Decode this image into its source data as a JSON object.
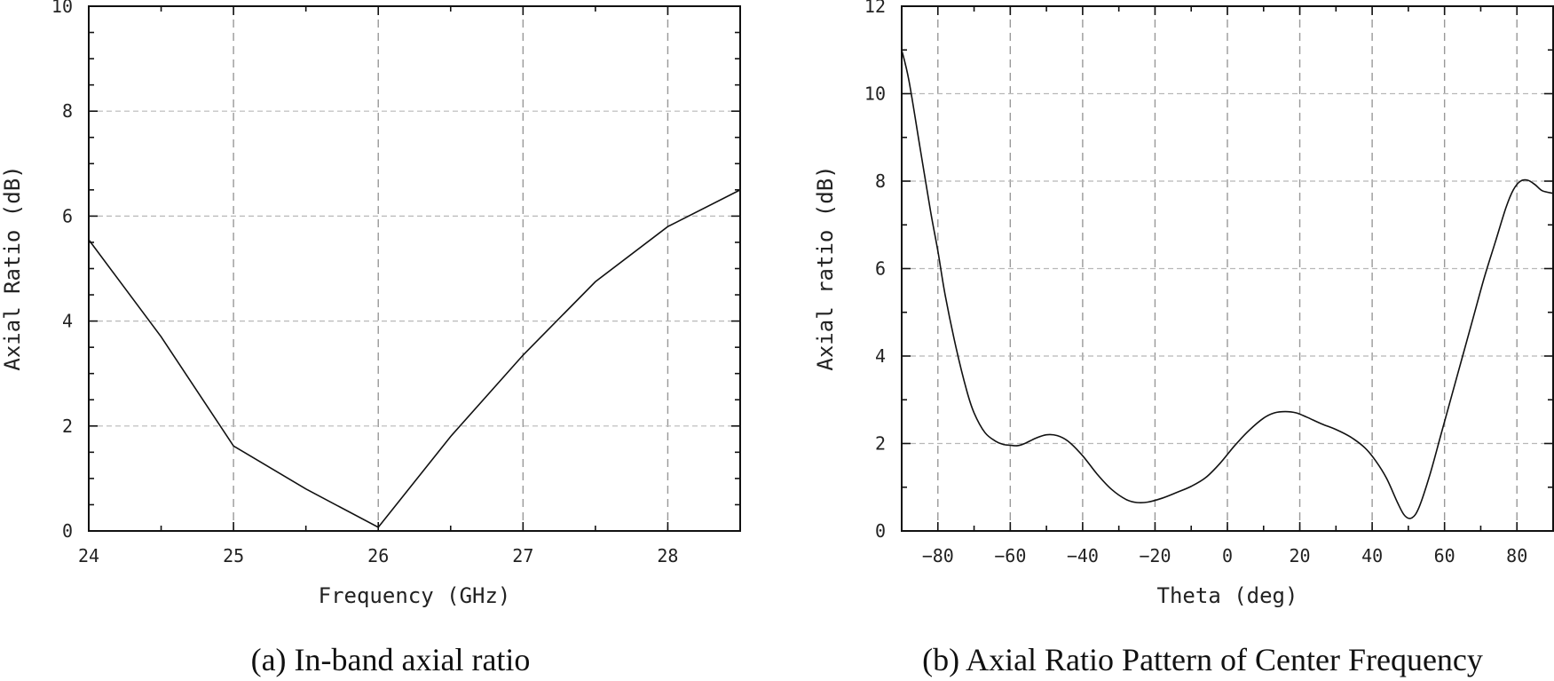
{
  "chart_data": [
    {
      "type": "line",
      "caption": "(a) In-band axial ratio",
      "xlabel": "Frequency (GHz)",
      "ylabel": "Axial Ratio (dB)",
      "xlim": [
        24,
        28.5
      ],
      "ylim": [
        0,
        10
      ],
      "xticks": [
        24,
        25,
        26,
        27,
        28
      ],
      "yticks": [
        0,
        2,
        4,
        6,
        8,
        10
      ],
      "xtick_labels": [
        "24",
        "25",
        "26",
        "27",
        "28"
      ],
      "ytick_labels": [
        "0",
        "2",
        "4",
        "6",
        "8",
        "10"
      ],
      "grid": true,
      "series": [
        {
          "name": "Axial Ratio",
          "x": [
            24,
            24.5,
            25,
            25.5,
            26,
            26.5,
            27,
            27.5,
            28,
            28.5
          ],
          "y": [
            5.55,
            3.7,
            1.62,
            0.8,
            0.07,
            1.8,
            3.35,
            4.75,
            5.8,
            6.5
          ]
        }
      ]
    },
    {
      "type": "line",
      "caption": "(b) Axial Ratio Pattern of Center Frequency",
      "xlabel": "Theta (deg)",
      "ylabel": "Axial ratio (dB)",
      "xlim": [
        -90,
        90
      ],
      "ylim": [
        0,
        12
      ],
      "xticks": [
        -80,
        -60,
        -40,
        -20,
        0,
        20,
        40,
        60,
        80
      ],
      "yticks": [
        0,
        2,
        4,
        6,
        8,
        10,
        12
      ],
      "xtick_labels": [
        "−80",
        "−60",
        "−40",
        "−20",
        "0",
        "20",
        "40",
        "60",
        "80"
      ],
      "ytick_labels": [
        "0",
        "2",
        "4",
        "6",
        "8",
        "10",
        "12"
      ],
      "grid": true,
      "series": [
        {
          "name": "Axial ratio",
          "x": [
            -90,
            -88,
            -85,
            -82,
            -80,
            -78,
            -75,
            -72,
            -70,
            -67,
            -64,
            -62,
            -60,
            -58,
            -56,
            -53,
            -50,
            -47,
            -44,
            -40,
            -36,
            -32,
            -28,
            -25,
            -22,
            -18,
            -14,
            -10,
            -6,
            -2,
            2,
            6,
            10,
            13,
            16,
            19,
            22,
            26,
            30,
            34,
            38,
            41,
            44,
            47,
            49,
            51,
            53,
            56,
            59,
            62,
            65,
            68,
            71,
            74,
            77,
            79,
            81,
            83,
            85,
            87,
            90
          ],
          "y": [
            11.0,
            10.3,
            8.8,
            7.3,
            6.4,
            5.4,
            4.2,
            3.2,
            2.7,
            2.25,
            2.05,
            1.98,
            1.96,
            1.95,
            2.0,
            2.12,
            2.2,
            2.18,
            2.05,
            1.72,
            1.3,
            0.95,
            0.72,
            0.65,
            0.66,
            0.75,
            0.88,
            1.02,
            1.22,
            1.55,
            1.95,
            2.3,
            2.58,
            2.7,
            2.73,
            2.7,
            2.6,
            2.45,
            2.32,
            2.15,
            1.9,
            1.6,
            1.2,
            0.65,
            0.35,
            0.3,
            0.55,
            1.3,
            2.2,
            3.1,
            4.0,
            4.9,
            5.8,
            6.6,
            7.4,
            7.8,
            8.0,
            8.02,
            7.92,
            7.78,
            7.72
          ]
        }
      ]
    }
  ]
}
